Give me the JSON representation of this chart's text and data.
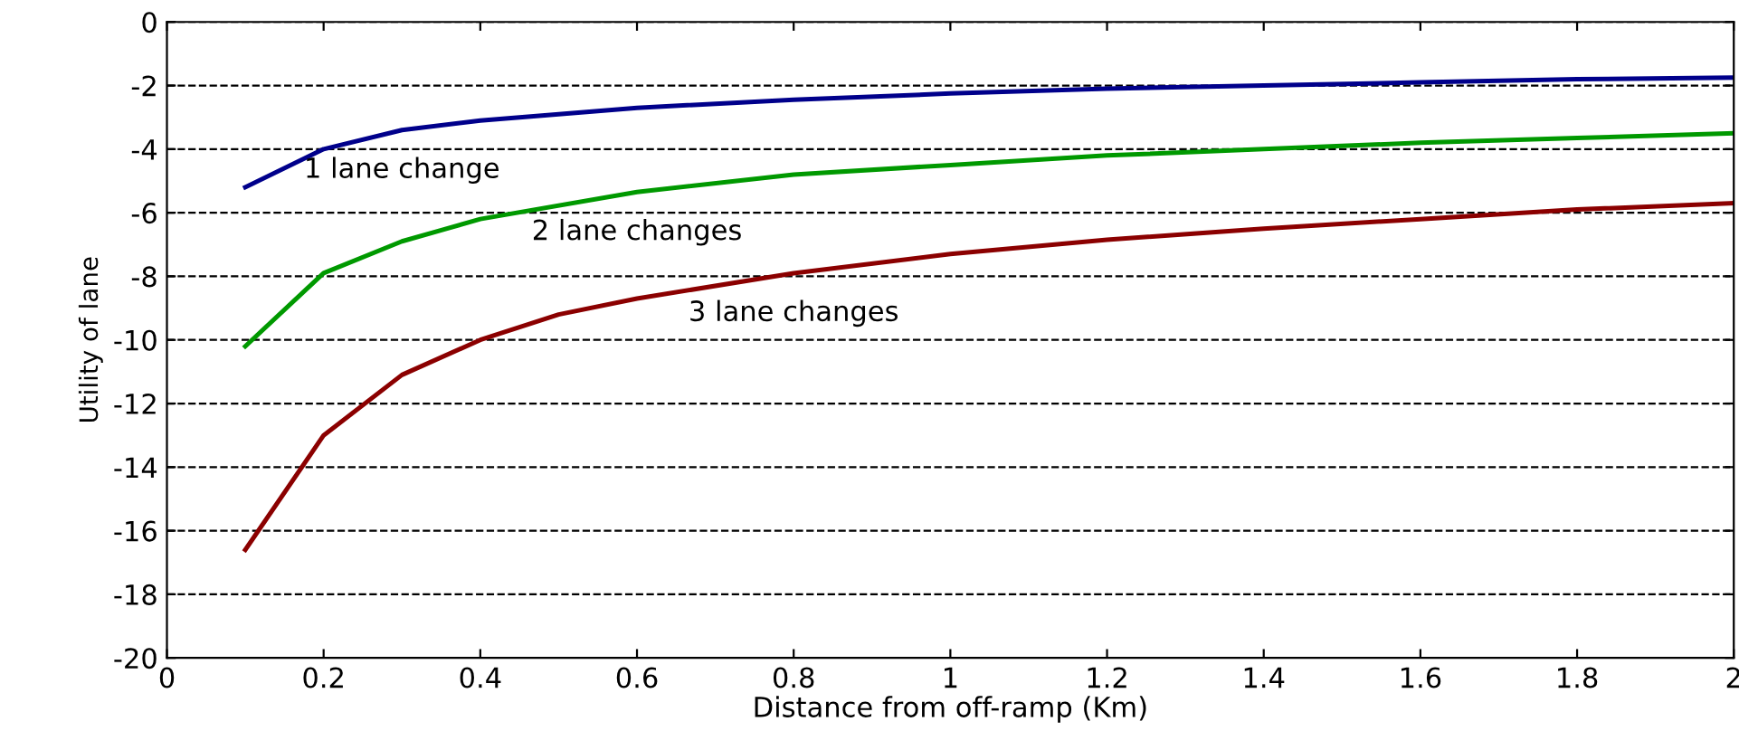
{
  "chart_data": {
    "type": "line",
    "xlabel": "Distance from off-ramp (Km)",
    "ylabel": "Utility of lane",
    "xlim": [
      0,
      2
    ],
    "xticks": [
      0,
      0.2,
      0.4,
      0.6,
      0.8,
      1,
      1.2,
      1.4,
      1.6,
      1.8,
      2
    ],
    "ylim": [
      -20,
      0
    ],
    "yticks": [
      -20,
      -18,
      -16,
      -14,
      -12,
      -10,
      -8,
      -6,
      -4,
      -2,
      0
    ],
    "grid": "y",
    "line_style": "solid",
    "marker": "none",
    "series": [
      {
        "name": "1 lane change",
        "color": "#00008b",
        "x": [
          0.1,
          0.2,
          0.3,
          0.4,
          0.6,
          0.8,
          1.0,
          1.2,
          1.4,
          1.6,
          1.8,
          2.0
        ],
        "values": [
          -5.2,
          -4.0,
          -3.4,
          -3.1,
          -2.7,
          -2.45,
          -2.25,
          -2.1,
          -2.0,
          -1.9,
          -1.8,
          -1.75
        ]
      },
      {
        "name": "2 lane changes",
        "color": "#009900",
        "x": [
          0.1,
          0.2,
          0.3,
          0.4,
          0.6,
          0.8,
          1.0,
          1.2,
          1.4,
          1.6,
          1.8,
          2.0
        ],
        "values": [
          -10.2,
          -7.9,
          -6.9,
          -6.2,
          -5.35,
          -4.8,
          -4.5,
          -4.2,
          -4.0,
          -3.8,
          -3.65,
          -3.5
        ]
      },
      {
        "name": "3 lane changes",
        "color": "#8b0000",
        "x": [
          0.1,
          0.2,
          0.3,
          0.4,
          0.5,
          0.6,
          0.8,
          1.0,
          1.2,
          1.4,
          1.6,
          1.8,
          2.0
        ],
        "values": [
          -16.6,
          -13.0,
          -11.1,
          -10.0,
          -9.2,
          -8.7,
          -7.9,
          -7.3,
          -6.85,
          -6.5,
          -6.2,
          -5.9,
          -5.7
        ]
      }
    ]
  }
}
